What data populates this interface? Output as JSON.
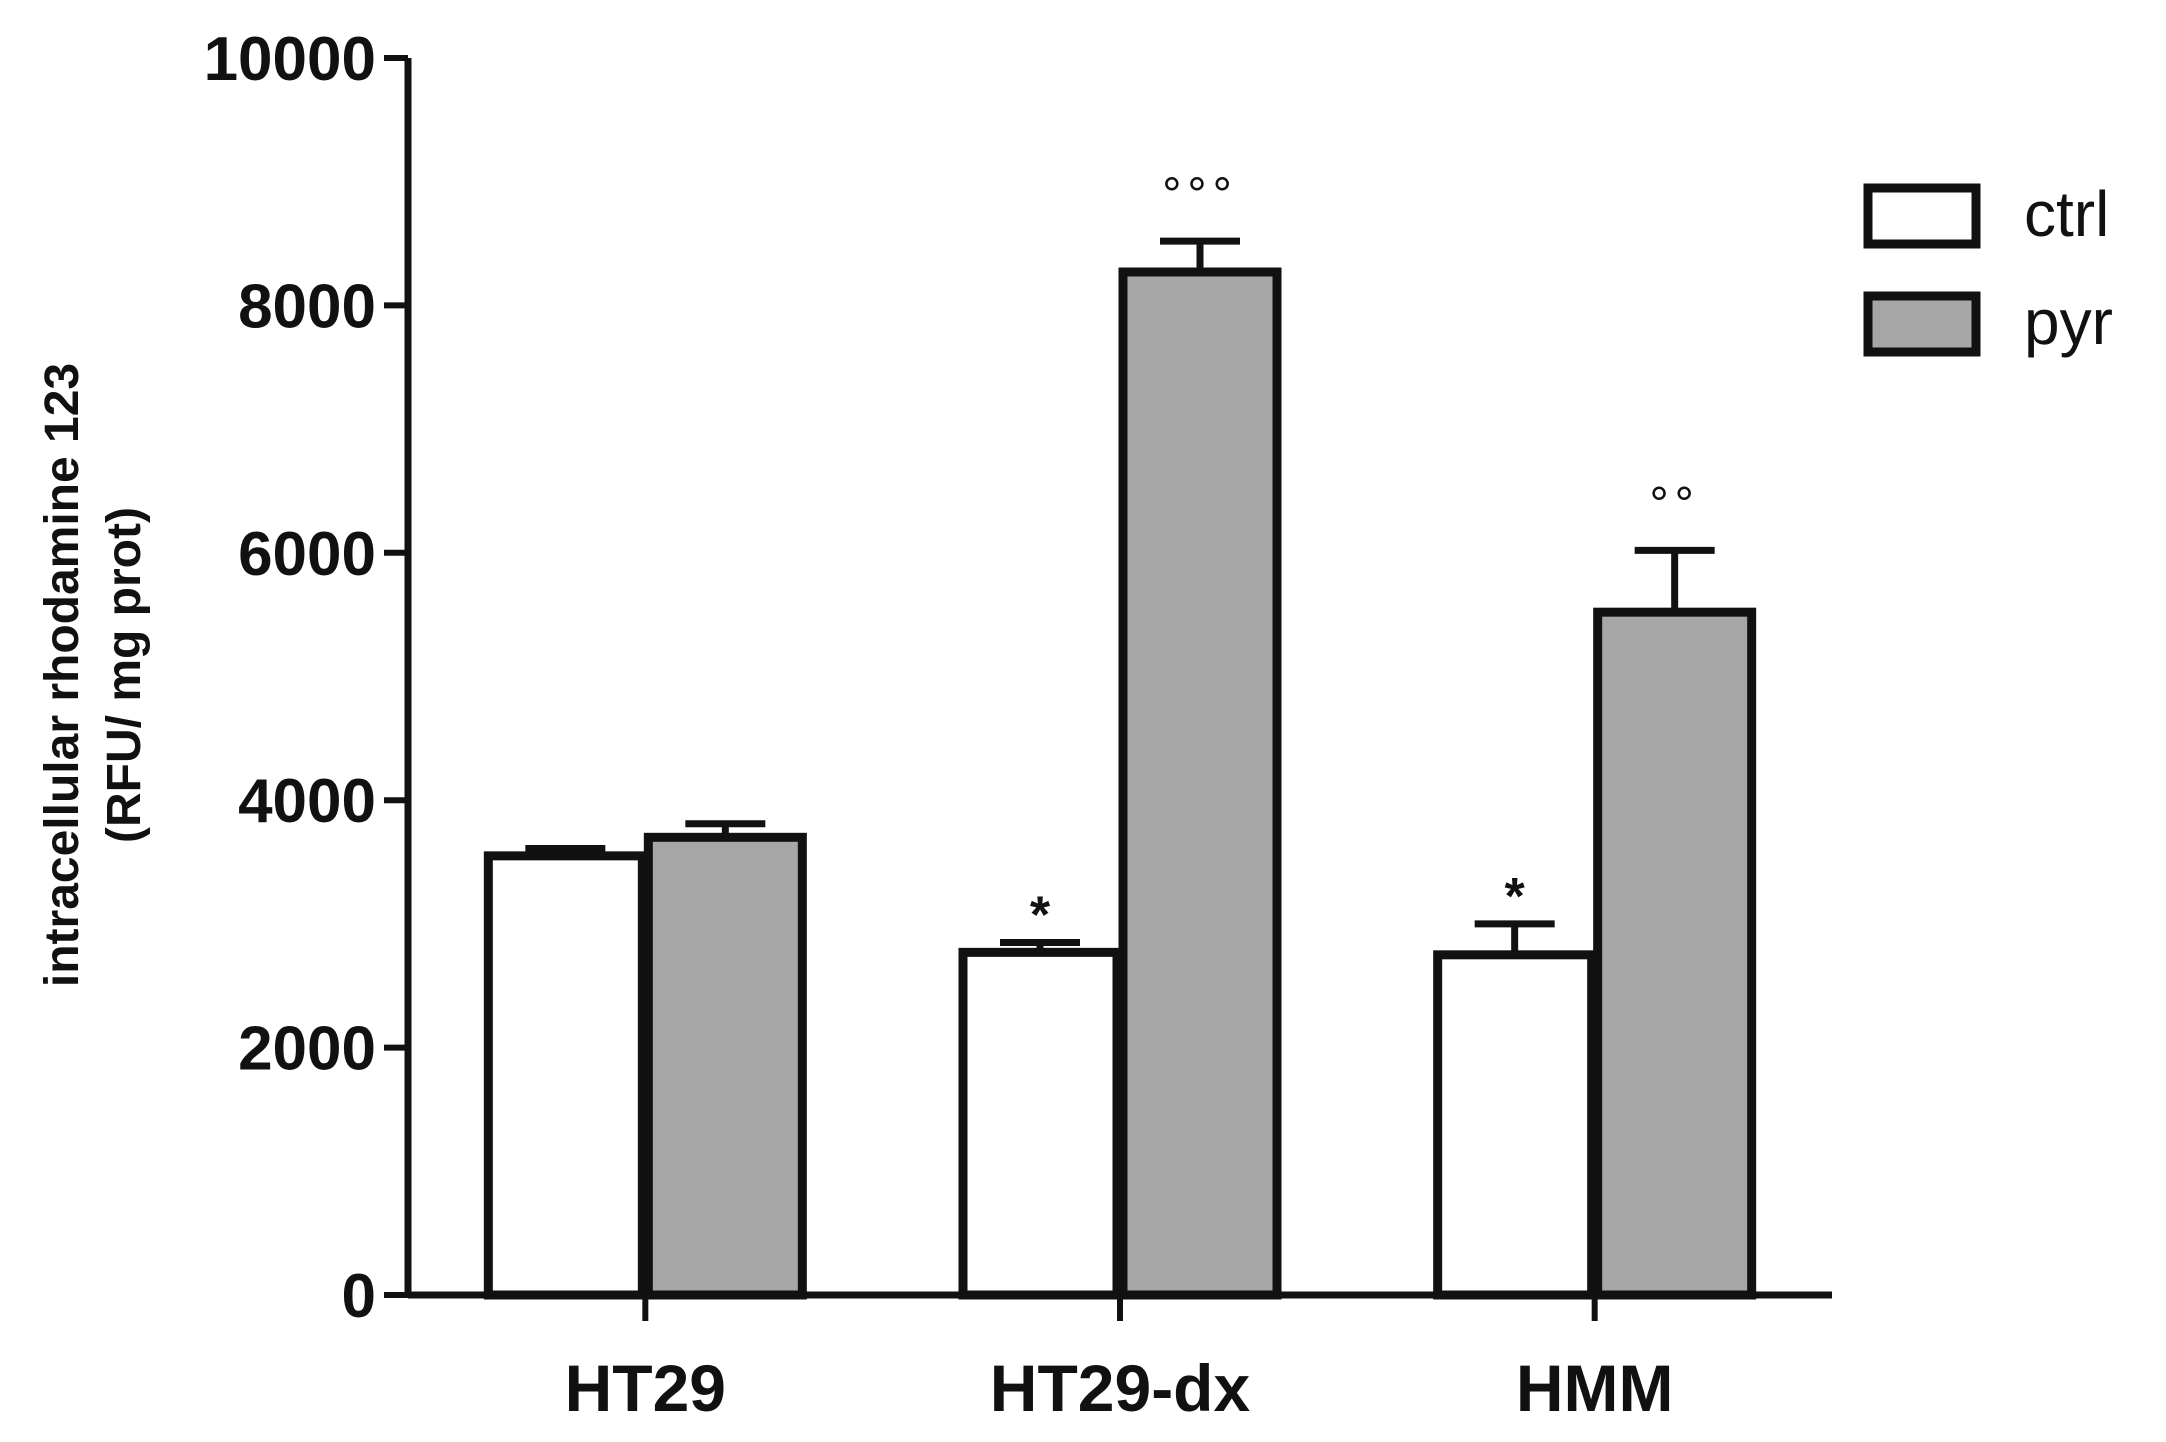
{
  "chart_data": {
    "type": "bar",
    "title": "",
    "xlabel": "",
    "ylabel_line1": "intracellular rhodamine 123",
    "ylabel_line2": "(RFU/ mg prot)",
    "categories": [
      "HT29",
      "HT29-dx",
      "HMM"
    ],
    "series": [
      {
        "name": "ctrl",
        "color": "#ffffff",
        "values": [
          3550,
          2770,
          2750
        ],
        "errors": [
          60,
          80,
          250
        ],
        "annotations": [
          "",
          "*",
          "*"
        ]
      },
      {
        "name": "pyr",
        "color": "#a6a6a6",
        "values": [
          3700,
          8270,
          5520
        ],
        "errors": [
          110,
          250,
          500
        ],
        "annotations": [
          "",
          "°°°",
          "°°"
        ]
      }
    ],
    "ylim": [
      0,
      10000
    ],
    "yticks": [
      0,
      2000,
      4000,
      6000,
      8000,
      10000
    ],
    "grid": false,
    "legend_position": "top-right"
  }
}
